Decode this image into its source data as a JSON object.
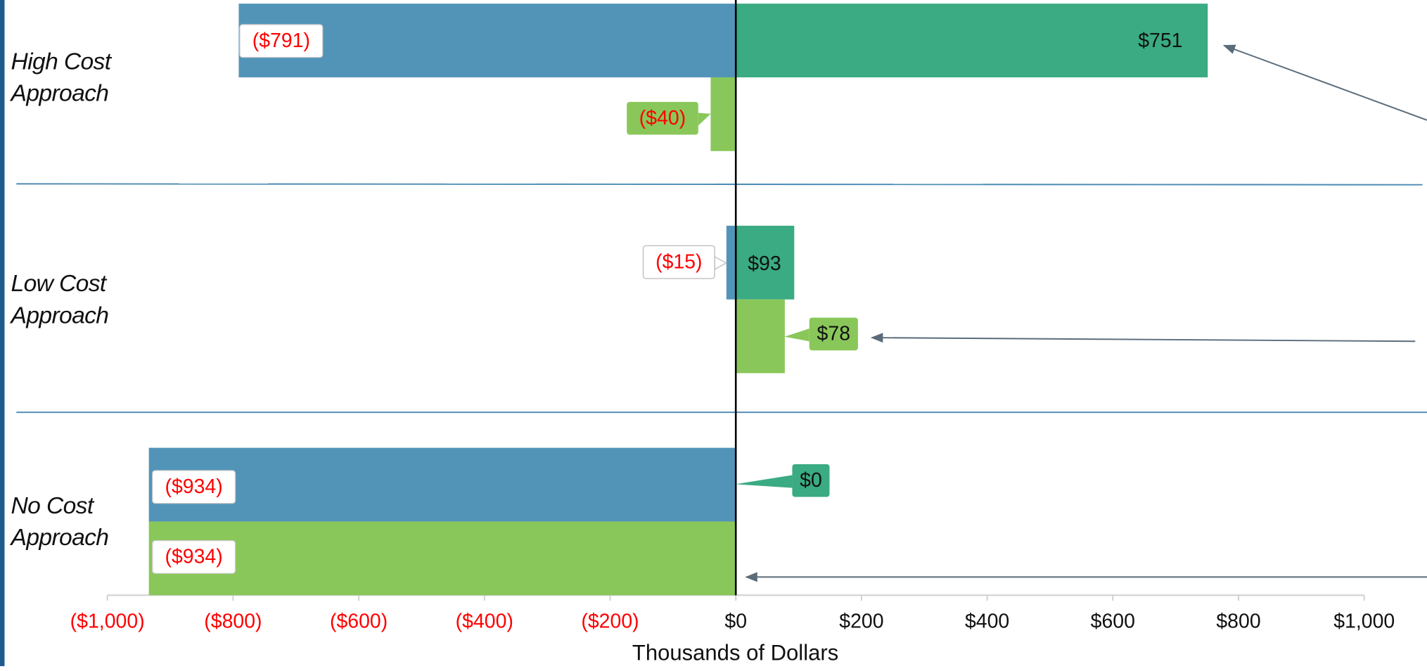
{
  "chart_data": {
    "type": "bar",
    "orientation": "horizontal",
    "x_label": "Thousands of Dollars",
    "categories": [
      "High Cost Approach",
      "Low Cost Approach",
      "No Cost Approach"
    ],
    "series": [
      {
        "color": "#5294b8",
        "values": [
          -791,
          -15,
          -934
        ],
        "value_labels": [
          "($791)",
          "($15)",
          "($934)"
        ]
      },
      {
        "color": "#3aab82",
        "values": [
          751,
          93,
          0
        ],
        "value_labels": [
          "$751",
          "$93",
          "$0"
        ]
      },
      {
        "color": "#8ac75a",
        "values": [
          -40,
          78,
          -934
        ],
        "value_labels": [
          "($40)",
          "$78",
          "($934)"
        ]
      }
    ],
    "xlim": [
      -1000,
      1000
    ],
    "xticks": [
      {
        "value": -1000,
        "label": "($1,000)"
      },
      {
        "value": -800,
        "label": "($800)"
      },
      {
        "value": -600,
        "label": "($600)"
      },
      {
        "value": -400,
        "label": "($400)"
      },
      {
        "value": -200,
        "label": "($200)"
      },
      {
        "value": 0,
        "label": "$0"
      },
      {
        "value": 200,
        "label": "$200"
      },
      {
        "value": 400,
        "label": "$400"
      },
      {
        "value": 600,
        "label": "$600"
      },
      {
        "value": 800,
        "label": "$800"
      },
      {
        "value": 1000,
        "label": "$1,000"
      }
    ]
  }
}
